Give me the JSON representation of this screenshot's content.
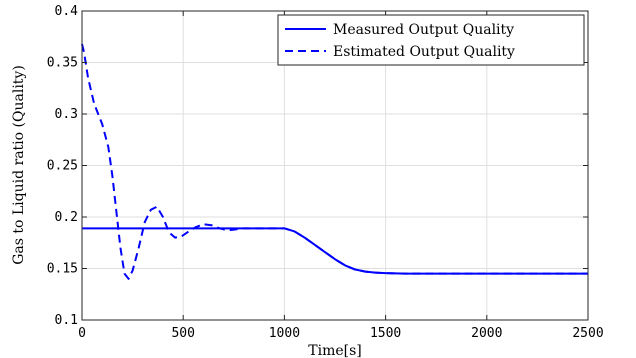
{
  "chart_data": {
    "type": "line",
    "xlabel": "Time[s]",
    "ylabel": "Gas to Liquid ratio (Quality)",
    "xlim": [
      0,
      2500
    ],
    "ylim": [
      0.1,
      0.4
    ],
    "xticks": [
      0,
      500,
      1000,
      1500,
      2000,
      2500
    ],
    "xtick_labels": [
      "0",
      "500",
      "1000",
      "1500",
      "2000",
      "2500"
    ],
    "yticks": [
      0.1,
      0.15,
      0.2,
      0.25,
      0.3,
      0.35,
      0.4
    ],
    "ytick_labels": [
      "0.1",
      "0.15",
      "0.2",
      "0.25",
      "0.3",
      "0.35",
      "0.4"
    ],
    "grid": true,
    "legend_position": "top-right",
    "series": [
      {
        "name": "Measured Output Quality",
        "style": "solid",
        "color": "#0000ff",
        "x": [
          0,
          100,
          200,
          300,
          400,
          500,
          600,
          700,
          800,
          900,
          1000,
          1050,
          1100,
          1150,
          1200,
          1250,
          1300,
          1350,
          1400,
          1450,
          1500,
          1600,
          1800,
          2000,
          2200,
          2400,
          2500
        ],
        "y": [
          0.189,
          0.189,
          0.189,
          0.189,
          0.189,
          0.189,
          0.189,
          0.189,
          0.189,
          0.189,
          0.189,
          0.186,
          0.18,
          0.173,
          0.166,
          0.159,
          0.153,
          0.149,
          0.147,
          0.146,
          0.1455,
          0.145,
          0.145,
          0.145,
          0.145,
          0.145,
          0.145
        ]
      },
      {
        "name": "Estimated Output Quality",
        "style": "dashed",
        "color": "#0000ff",
        "x": [
          0,
          10,
          30,
          60,
          100,
          130,
          150,
          170,
          190,
          210,
          230,
          250,
          280,
          310,
          340,
          370,
          400,
          430,
          460,
          490,
          520,
          560,
          600,
          640,
          680,
          720,
          760,
          800,
          850,
          900,
          950,
          1000,
          1050,
          1100,
          1150,
          1200,
          1250,
          1300,
          1350,
          1400,
          1450,
          1500,
          1600,
          1800,
          2000,
          2200,
          2400,
          2500
        ],
        "y": [
          0.368,
          0.36,
          0.335,
          0.31,
          0.29,
          0.268,
          0.24,
          0.205,
          0.17,
          0.145,
          0.14,
          0.148,
          0.17,
          0.195,
          0.207,
          0.21,
          0.2,
          0.185,
          0.18,
          0.181,
          0.185,
          0.19,
          0.193,
          0.192,
          0.189,
          0.187,
          0.188,
          0.189,
          0.189,
          0.189,
          0.189,
          0.189,
          0.186,
          0.18,
          0.173,
          0.166,
          0.159,
          0.153,
          0.149,
          0.147,
          0.146,
          0.1455,
          0.145,
          0.145,
          0.145,
          0.145,
          0.145,
          0.145
        ]
      }
    ]
  }
}
